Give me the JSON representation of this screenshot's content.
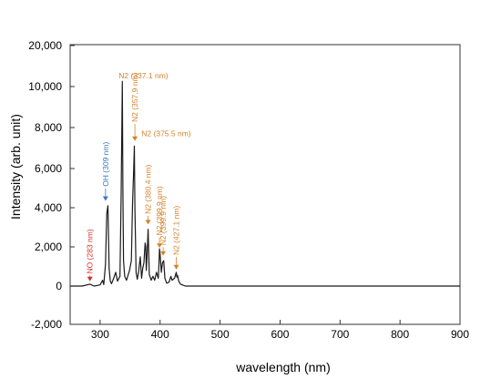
{
  "chart_data": {
    "type": "line",
    "title": "",
    "xlabel": "wavelength (nm)",
    "ylabel": "Intensity (arb. unit)",
    "xlim": [
      250,
      900
    ],
    "ylim": [
      -2000,
      20000
    ],
    "x_ticks": [
      300,
      400,
      500,
      600,
      700,
      800,
      900
    ],
    "y_ticks": [
      {
        "value": -2000,
        "label": "-2,000"
      },
      {
        "value": 0,
        "label": "0"
      },
      {
        "value": 2000,
        "label": "2,000"
      },
      {
        "value": 4000,
        "label": "4,000"
      },
      {
        "value": 6000,
        "label": "6,000"
      },
      {
        "value": 8000,
        "label": "8,000"
      },
      {
        "value": 10000,
        "label": "10,000"
      },
      {
        "value": 20000,
        "label": "20,000"
      }
    ],
    "grid": false,
    "legend": "none",
    "colors": {
      "line": "#1a1a1a",
      "n2": "#d4832a",
      "oh": "#3a78c9",
      "no": "#d0342c"
    },
    "series": [
      {
        "x": [
          250,
          270,
          283,
          290,
          300,
          304,
          306,
          309,
          311,
          313,
          315,
          317,
          319,
          322,
          326,
          329,
          333,
          335,
          337,
          338,
          339,
          341,
          344,
          349,
          352,
          354,
          356,
          357,
          358,
          360,
          362,
          364,
          367,
          369,
          371,
          373,
          375,
          376,
          377,
          378,
          380,
          382,
          385,
          388,
          391,
          394,
          397,
          398,
          399,
          400,
          402,
          404,
          406,
          408,
          411,
          415,
          418,
          420,
          424,
          427,
          428,
          429,
          431,
          434,
          438,
          442,
          450,
          470,
          500,
          550,
          600,
          650,
          700,
          750,
          800,
          850,
          900
        ],
        "y": [
          0,
          0,
          100,
          0,
          60,
          300,
          80,
          1100,
          3700,
          4100,
          900,
          250,
          120,
          350,
          700,
          250,
          500,
          4700,
          11300,
          5000,
          1300,
          500,
          300,
          800,
          1300,
          4200,
          6000,
          7100,
          4000,
          700,
          350,
          700,
          1500,
          400,
          900,
          1200,
          2200,
          2000,
          800,
          1400,
          2900,
          600,
          300,
          500,
          300,
          700,
          400,
          1100,
          1900,
          1600,
          700,
          1200,
          1300,
          400,
          150,
          200,
          500,
          300,
          400,
          700,
          450,
          550,
          250,
          100,
          50,
          0,
          0,
          0,
          0,
          0,
          0,
          0,
          0,
          0,
          0,
          0,
          0
        ]
      }
    ],
    "annotations": [
      {
        "species": "NO",
        "wavelength": "283 nm",
        "arrow_x": 283,
        "arrow_y": 200,
        "label_y": 350,
        "color": "#d0342c",
        "rotated": true
      },
      {
        "species": "OH",
        "wavelength": "309 nm",
        "arrow_x": 309,
        "arrow_y": 4300,
        "label_y": 4800,
        "color": "#3a78c9",
        "rotated": true
      },
      {
        "species": "N2",
        "wavelength": "337.1 nm",
        "arrow_x": 337,
        "arrow_y": 11500,
        "label_y": 11600,
        "color": "#d4832a",
        "rotated": false
      },
      {
        "species": "N2",
        "wavelength": "357.9 nm",
        "arrow_x": 358,
        "arrow_y": 7300,
        "label_y": 8000,
        "color": "#d4832a",
        "rotated": true
      },
      {
        "species": "N2",
        "wavelength": "375.5 nm",
        "arrow_x": 375,
        "arrow_y": 7500,
        "label_y": 7500,
        "color": "#d4832a",
        "rotated": false
      },
      {
        "species": "N2",
        "wavelength": "380.4 nm",
        "arrow_x": 380,
        "arrow_y": 3100,
        "label_y": 3400,
        "color": "#d4832a",
        "rotated": true
      },
      {
        "species": "N2",
        "wavelength": "399.9 nm",
        "arrow_x": 399,
        "arrow_y": 1900,
        "label_y": 2300,
        "color": "#d4832a",
        "rotated": true
      },
      {
        "species": "N2",
        "wavelength": "399.9 nm",
        "arrow_x": 405,
        "arrow_y": 1500,
        "label_y": 1800,
        "color": "#d4832a",
        "rotated": true
      },
      {
        "species": "N2",
        "wavelength": "427.1 nm",
        "arrow_x": 427,
        "arrow_y": 800,
        "label_y": 1300,
        "color": "#d4832a",
        "rotated": true
      }
    ]
  }
}
